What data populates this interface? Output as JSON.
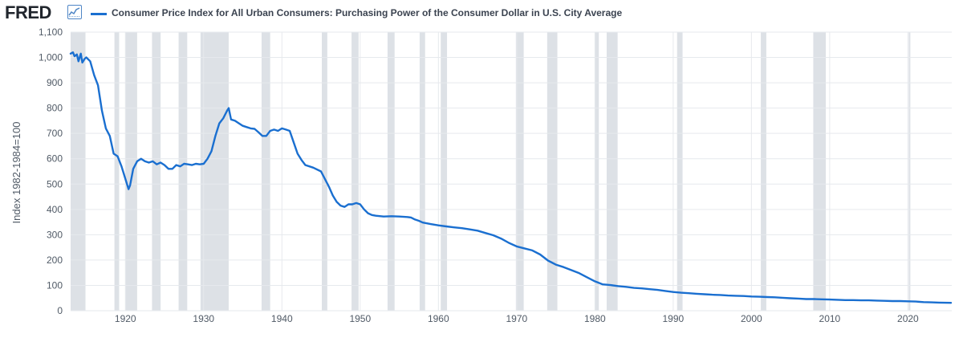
{
  "header": {
    "logo_text": "FRED",
    "logo_icon": "line-chart-icon",
    "legend_label": "Consumer Price Index for All Urban Consumers: Purchasing Power of the Consumer Dollar in U.S. City Average"
  },
  "colors": {
    "series": "#1a6fd0",
    "recession": "#dde1e6",
    "grid": "#e6e9ed",
    "axis_text": "#505a66"
  },
  "chart_data": {
    "type": "line",
    "title": "Consumer Price Index for All Urban Consumers: Purchasing Power of the Consumer Dollar in U.S. City Average",
    "xlabel": "",
    "ylabel": "Index 1982-1984=100",
    "xlim": [
      1913,
      2025.6
    ],
    "ylim": [
      0,
      1100
    ],
    "x_ticks": [
      1920,
      1930,
      1940,
      1950,
      1960,
      1970,
      1980,
      1990,
      2000,
      2010,
      2020
    ],
    "y_ticks": [
      0,
      100,
      200,
      300,
      400,
      500,
      600,
      700,
      800,
      900,
      1000,
      1100
    ],
    "y_tick_labels": [
      "0",
      "100",
      "200",
      "300",
      "400",
      "500",
      "600",
      "700",
      "800",
      "900",
      "1,000",
      "1,100"
    ],
    "grid": true,
    "recessions": [
      [
        1913.0,
        1914.9
      ],
      [
        1918.6,
        1919.2
      ],
      [
        1920.0,
        1921.5
      ],
      [
        1923.4,
        1924.5
      ],
      [
        1926.8,
        1927.9
      ],
      [
        1929.6,
        1933.2
      ],
      [
        1937.4,
        1938.5
      ],
      [
        1945.1,
        1945.8
      ],
      [
        1948.9,
        1949.8
      ],
      [
        1953.5,
        1954.4
      ],
      [
        1957.6,
        1958.3
      ],
      [
        1960.3,
        1961.1
      ],
      [
        1969.9,
        1970.9
      ],
      [
        1973.9,
        1975.2
      ],
      [
        1980.0,
        1980.5
      ],
      [
        1981.5,
        1982.9
      ],
      [
        1990.5,
        1991.2
      ],
      [
        2001.2,
        2001.9
      ],
      [
        2007.9,
        2009.5
      ],
      [
        2020.1,
        2020.3
      ]
    ],
    "series": [
      {
        "name": "Purchasing Power of the Consumer Dollar",
        "x": [
          1913.0,
          1913.3,
          1913.5,
          1913.8,
          1914.0,
          1914.3,
          1914.5,
          1914.8,
          1915.0,
          1915.5,
          1916.0,
          1916.5,
          1917.0,
          1917.5,
          1918.0,
          1918.5,
          1919.0,
          1919.5,
          1920.0,
          1920.4,
          1920.6,
          1921.0,
          1921.5,
          1922.0,
          1922.5,
          1923.0,
          1923.5,
          1924.0,
          1924.5,
          1925.0,
          1925.5,
          1926.0,
          1926.5,
          1927.0,
          1927.5,
          1928.0,
          1928.5,
          1929.0,
          1929.5,
          1930.0,
          1930.5,
          1931.0,
          1931.5,
          1932.0,
          1932.5,
          1933.0,
          1933.2,
          1933.5,
          1934.0,
          1934.5,
          1935.0,
          1935.5,
          1936.0,
          1936.5,
          1937.0,
          1937.5,
          1938.0,
          1938.5,
          1939.0,
          1939.5,
          1940.0,
          1940.5,
          1941.0,
          1941.5,
          1942.0,
          1942.5,
          1943.0,
          1944.0,
          1945.0,
          1946.0,
          1946.5,
          1947.0,
          1947.5,
          1948.0,
          1948.5,
          1949.0,
          1949.5,
          1950.0,
          1950.5,
          1951.0,
          1951.5,
          1952.0,
          1953.0,
          1954.0,
          1955.0,
          1956.0,
          1956.5,
          1957.0,
          1957.5,
          1958.0,
          1959.0,
          1960.0,
          1961.0,
          1962.0,
          1963.0,
          1964.0,
          1965.0,
          1966.0,
          1967.0,
          1968.0,
          1969.0,
          1970.0,
          1971.0,
          1972.0,
          1973.0,
          1974.0,
          1975.0,
          1976.0,
          1977.0,
          1978.0,
          1979.0,
          1980.0,
          1981.0,
          1982.0,
          1983.0,
          1984.0,
          1985.0,
          1986.0,
          1987.0,
          1988.0,
          1989.0,
          1990.0,
          1991.0,
          1992.0,
          1993.0,
          1994.0,
          1995.0,
          1996.0,
          1997.0,
          1998.0,
          1999.0,
          2000.0,
          2001.0,
          2002.0,
          2003.0,
          2004.0,
          2005.0,
          2006.0,
          2007.0,
          2008.0,
          2009.0,
          2010.0,
          2011.0,
          2012.0,
          2013.0,
          2014.0,
          2015.0,
          2016.0,
          2017.0,
          2018.0,
          2019.0,
          2020.0,
          2021.0,
          2022.0,
          2023.0,
          2024.0,
          2025.5
        ],
        "values": [
          1015,
          1020,
          1005,
          1012,
          985,
          1015,
          980,
          995,
          1000,
          985,
          930,
          890,
          790,
          720,
          690,
          620,
          610,
          570,
          520,
          480,
          495,
          560,
          590,
          600,
          590,
          585,
          590,
          578,
          585,
          575,
          560,
          560,
          575,
          570,
          580,
          578,
          575,
          580,
          578,
          580,
          600,
          630,
          690,
          740,
          760,
          790,
          800,
          755,
          750,
          740,
          730,
          725,
          720,
          718,
          705,
          690,
          690,
          710,
          715,
          710,
          720,
          715,
          710,
          665,
          620,
          595,
          575,
          565,
          550,
          490,
          455,
          430,
          415,
          410,
          420,
          420,
          425,
          420,
          400,
          385,
          378,
          375,
          372,
          373,
          372,
          370,
          368,
          360,
          355,
          348,
          342,
          337,
          333,
          329,
          326,
          321,
          316,
          307,
          298,
          285,
          268,
          254,
          246,
          238,
          222,
          198,
          182,
          172,
          160,
          148,
          132,
          116,
          104,
          101,
          97,
          94,
          90,
          88,
          85,
          82,
          78,
          74,
          71,
          69,
          67,
          65,
          63,
          62,
          60,
          59,
          58,
          56,
          55,
          54,
          53,
          51,
          49,
          48,
          46,
          46,
          45,
          44,
          43,
          42,
          42,
          41,
          41,
          40,
          39,
          38,
          38,
          37,
          36,
          34,
          33,
          32,
          31
        ]
      }
    ]
  }
}
